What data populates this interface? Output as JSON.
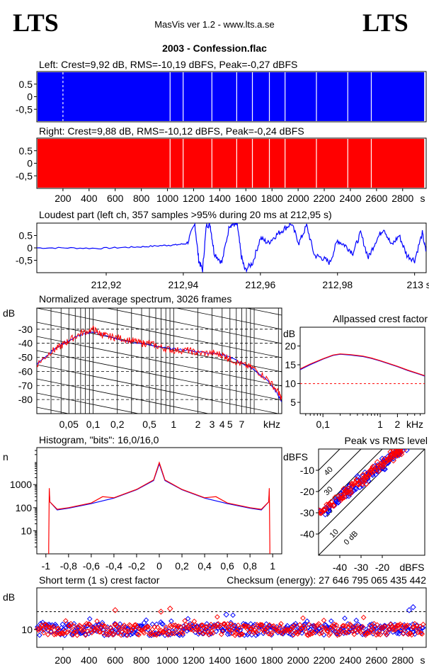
{
  "header": {
    "logo_left": "LTS",
    "logo_right": "LTS",
    "app_title": "MasVis ver 1.2 - www.lts.a.se",
    "file_title": "2003 - Confession.flac"
  },
  "colors": {
    "left": "#0000ff",
    "right": "#ff0000",
    "grid": "#000000",
    "reference_line": "#ff0000"
  },
  "chart_data": [
    {
      "id": "left_waveform",
      "type": "area",
      "title": "Left: Crest=9,92 dB, RMS=-10,19 dBFS, Peak=-0,27 dBFS",
      "ylim": [
        -1,
        1
      ],
      "y_ticks": [
        "0.5",
        "0",
        "-0,5"
      ],
      "y_tick_values": [
        0.5,
        0,
        -0.5
      ],
      "xlim": [
        0,
        2980
      ],
      "series": [
        {
          "name": "",
          "color": "#0000ff"
        }
      ],
      "envelope_x": [
        0,
        100,
        200,
        300,
        400,
        500,
        600,
        700,
        800,
        900,
        1000,
        1100,
        1200,
        1300,
        1400,
        1500,
        1600,
        1700,
        1800,
        1900,
        2000,
        2100,
        2200,
        2300,
        2400,
        2500,
        2600,
        2700,
        2800,
        2900,
        2960
      ],
      "envelope_y": [
        0.97,
        0.97,
        0.97,
        0.97,
        0.97,
        0.97,
        0.97,
        0.97,
        0.97,
        0.97,
        0.97,
        0.97,
        0.97,
        0.97,
        0.97,
        0.97,
        0.97,
        0.97,
        0.97,
        0.97,
        0.97,
        0.97,
        0.97,
        0.97,
        0.97,
        0.97,
        0.97,
        0.97,
        0.97,
        0.97,
        0.97
      ],
      "gaps_x": [
        200,
        1020,
        1120,
        1340,
        1530,
        1650,
        1780,
        1900,
        2140,
        2380,
        2560
      ]
    },
    {
      "id": "right_waveform",
      "type": "area",
      "title": "Right: Crest=9,88 dB, RMS=-10,12 dBFS, Peak=-0,24 dBFS",
      "ylim": [
        -1,
        1
      ],
      "y_ticks": [
        "0.5",
        "0",
        "-0,5"
      ],
      "y_tick_values": [
        0.5,
        0,
        -0.5
      ],
      "xlim": [
        0,
        2980
      ],
      "x_ticks": [
        "200",
        "400",
        "600",
        "800",
        "1000",
        "1200",
        "1400",
        "1600",
        "1800",
        "2000",
        "2200",
        "2400",
        "2600",
        "2800"
      ],
      "x_tick_values": [
        200,
        400,
        600,
        800,
        1000,
        1200,
        1400,
        1600,
        1800,
        2000,
        2200,
        2400,
        2600,
        2800
      ],
      "x_unit": "s",
      "series": [
        {
          "name": "",
          "color": "#ff0000"
        }
      ],
      "gaps_x": [
        1020,
        1120,
        1340,
        1530,
        1650,
        1780,
        1900,
        2140,
        2380,
        2560
      ]
    },
    {
      "id": "loudest_part",
      "type": "line",
      "title": "Loudest part (left  ch, 357 samples >95% during 20 ms at 212,95 s)",
      "ylim": [
        -1,
        1
      ],
      "y_ticks": [
        "0.5",
        "0",
        "-0,5"
      ],
      "y_tick_values": [
        0.5,
        0,
        -0.5
      ],
      "xlim": [
        212.902,
        213.003
      ],
      "x_ticks": [
        "212,92",
        "212,94",
        "212,96",
        "212,98",
        "213 s"
      ],
      "x_tick_values": [
        212.92,
        212.94,
        212.96,
        212.98,
        213.0
      ],
      "series": [
        {
          "name": "",
          "color": "#0000ff",
          "x": [
            212.902,
            212.91,
            212.918,
            212.925,
            212.93,
            212.935,
            212.938,
            212.941,
            212.943,
            212.944,
            212.945,
            212.946,
            212.947,
            212.948,
            212.95,
            212.952,
            212.953,
            212.954,
            212.955,
            212.956,
            212.958,
            212.96,
            212.962,
            212.964,
            212.966,
            212.968,
            212.97,
            212.972,
            212.974,
            212.976,
            212.978,
            212.98,
            212.982,
            212.984,
            212.986,
            212.988,
            212.99,
            212.992,
            212.994,
            212.996,
            212.998,
            213.0,
            213.002,
            213.003
          ],
          "y": [
            0.0,
            0.0,
            -0.02,
            0.02,
            0.05,
            0.1,
            0.12,
            0.18,
            0.95,
            -0.5,
            -0.9,
            0.95,
            0.9,
            -0.2,
            -0.6,
            0.92,
            0.95,
            0.95,
            -0.3,
            -0.9,
            -0.6,
            0.4,
            0.2,
            0.5,
            0.75,
            0.98,
            0.2,
            0.9,
            -0.3,
            -0.4,
            -0.6,
            0.3,
            0.1,
            -0.2,
            0.6,
            -0.4,
            0.3,
            0.8,
            0.1,
            0.5,
            -0.3,
            -0.5,
            0.6,
            -0.2
          ]
        }
      ]
    },
    {
      "id": "avg_spectrum",
      "type": "line",
      "title": "Normalized average spectrum, 3026 frames",
      "ylabel": "dB",
      "ylim": [
        -90,
        -15
      ],
      "y_ticks": [
        "-30",
        "-40",
        "-50",
        "-60",
        "-70",
        "-80"
      ],
      "y_tick_values": [
        -30,
        -40,
        -50,
        -60,
        -70,
        -80
      ],
      "x_scale": "log",
      "xlim": [
        0.02,
        22
      ],
      "x_ticks": [
        "0,05",
        "0,1",
        "0,2",
        "0,5",
        "1",
        "2",
        "3",
        "4",
        "5",
        "7"
      ],
      "x_tick_values": [
        0.05,
        0.1,
        0.2,
        0.5,
        1,
        2,
        3,
        4,
        5,
        7
      ],
      "x_unit": "kHz",
      "series": [
        {
          "name": "",
          "color": "#0000ff",
          "x": [
            0.02,
            0.03,
            0.04,
            0.05,
            0.07,
            0.1,
            0.15,
            0.2,
            0.3,
            0.5,
            0.7,
            1,
            1.5,
            2,
            3,
            4,
            5,
            7,
            10,
            15,
            20,
            22
          ],
          "y": [
            -55,
            -46,
            -41,
            -38,
            -34,
            -32,
            -35,
            -37,
            -39,
            -41,
            -43,
            -44,
            -45,
            -46,
            -47,
            -48,
            -50,
            -54,
            -59,
            -67,
            -77,
            -82
          ]
        },
        {
          "name": "",
          "color": "#ff0000",
          "x": [
            0.02,
            0.03,
            0.04,
            0.05,
            0.07,
            0.1,
            0.12,
            0.15,
            0.2,
            0.3,
            0.4,
            0.5,
            0.7,
            1,
            1.5,
            2,
            3,
            4,
            5,
            7,
            10,
            15,
            20,
            22
          ],
          "y": [
            -55,
            -46,
            -42,
            -38,
            -33,
            -30,
            -33,
            -35,
            -36,
            -38,
            -40,
            -40,
            -43,
            -45,
            -45,
            -47,
            -47,
            -48,
            -51,
            -55,
            -58,
            -66,
            -75,
            -80
          ]
        }
      ]
    },
    {
      "id": "allpassed_crest",
      "type": "line",
      "title": "Allpassed crest factor",
      "ylabel": "dB",
      "ylim": [
        2,
        25
      ],
      "y_ticks": [
        "20",
        "15",
        "10",
        "5"
      ],
      "y_tick_values": [
        20,
        15,
        10,
        5
      ],
      "x_scale": "log",
      "xlim": [
        0.04,
        6
      ],
      "x_ticks": [
        "0,1",
        "1",
        "2",
        "kHz"
      ],
      "x_tick_values": [
        0.1,
        1,
        2
      ],
      "reference_y": 10,
      "series": [
        {
          "name": "",
          "color": "#0000ff",
          "x": [
            0.04,
            0.06,
            0.1,
            0.15,
            0.2,
            0.3,
            0.5,
            0.7,
            1,
            2,
            3,
            5,
            6
          ],
          "y": [
            13.7,
            15,
            16.5,
            17.5,
            17.8,
            17.6,
            17.2,
            16.7,
            16.0,
            14.5,
            13.5,
            12.4,
            12.0
          ]
        },
        {
          "name": "",
          "color": "#ff0000",
          "x": [
            0.04,
            0.06,
            0.1,
            0.15,
            0.2,
            0.3,
            0.5,
            0.7,
            1,
            2,
            3,
            5,
            6
          ],
          "y": [
            13.9,
            15.2,
            16.6,
            17.6,
            17.9,
            17.7,
            17.3,
            16.8,
            16.1,
            14.6,
            13.6,
            12.5,
            12.1
          ]
        }
      ]
    },
    {
      "id": "histogram",
      "type": "line",
      "title": "Histogram, \"bits\": 16,0/16,0",
      "ylabel": "n",
      "y_scale": "log",
      "ylim": [
        1,
        40000
      ],
      "y_ticks": [
        "1000",
        "100",
        "10"
      ],
      "y_tick_values": [
        1000,
        100,
        10
      ],
      "xlim": [
        -1.08,
        1.08
      ],
      "x_ticks": [
        "-1",
        "-0,8",
        "-0,6",
        "-0,4",
        "-0,2",
        "0",
        "0,2",
        "0,4",
        "0,6",
        "0,8",
        "1"
      ],
      "x_tick_values": [
        -1,
        -0.8,
        -0.6,
        -0.4,
        -0.2,
        0,
        0.2,
        0.4,
        0.6,
        0.8,
        1
      ],
      "series": [
        {
          "name": "",
          "color": "#0000ff",
          "x": [
            -0.97,
            -0.965,
            -0.9,
            -0.8,
            -0.6,
            -0.4,
            -0.2,
            -0.05,
            0,
            0.05,
            0.2,
            0.4,
            0.6,
            0.8,
            0.9,
            0.965,
            0.97
          ],
          "y": [
            500,
            180,
            80,
            95,
            150,
            260,
            600,
            1500,
            8000,
            1500,
            600,
            260,
            150,
            95,
            80,
            180,
            500
          ]
        },
        {
          "name": "",
          "color": "#ff0000",
          "x": [
            -0.975,
            -0.97,
            -0.965,
            -0.9,
            -0.8,
            -0.6,
            -0.5,
            -0.4,
            -0.2,
            -0.05,
            0,
            0.05,
            0.2,
            0.4,
            0.5,
            0.6,
            0.8,
            0.9,
            0.965,
            0.97,
            0.975
          ],
          "y": [
            2,
            700,
            180,
            85,
            100,
            160,
            300,
            270,
            620,
            1600,
            9000,
            1600,
            620,
            270,
            300,
            160,
            100,
            85,
            180,
            700,
            2
          ]
        }
      ]
    },
    {
      "id": "peak_vs_rms",
      "type": "scatter",
      "title": "Peak vs RMS level",
      "ylabel": "dBFS",
      "xlabel": "dBFS",
      "xlim": [
        -50,
        0
      ],
      "ylim": [
        -50,
        0
      ],
      "y_ticks": [
        "-10",
        "-20",
        "-30",
        "-40"
      ],
      "y_tick_values": [
        -10,
        -20,
        -30,
        -40
      ],
      "x_ticks": [
        "-40",
        "-30",
        "-20",
        "dBFS"
      ],
      "x_tick_values": [
        -40,
        -30,
        -20
      ],
      "crest_lines": [
        "0 dB",
        "10",
        "20",
        "30",
        "40"
      ],
      "crest_line_values": [
        0,
        10,
        20,
        30,
        40
      ],
      "series": [
        {
          "name": "",
          "color": "#0000ff",
          "x": [
            -48,
            -46,
            -44,
            -42,
            -40,
            -38,
            -36,
            -34,
            -32,
            -30,
            -28,
            -26,
            -24,
            -22,
            -20,
            -18,
            -16,
            -14,
            -12,
            -10,
            -38,
            -35,
            -31,
            -27,
            -23,
            -19,
            -15,
            -13
          ],
          "y": [
            -30,
            -28,
            -27,
            -25,
            -24,
            -22,
            -21,
            -20,
            -18,
            -16,
            -14,
            -13,
            -11,
            -9,
            -8,
            -6,
            -4,
            -3,
            -1,
            0,
            -19,
            -17,
            -14,
            -11,
            -9,
            -6,
            -3,
            -2
          ]
        },
        {
          "name": "",
          "color": "#ff0000",
          "x": [
            -49,
            -47,
            -45,
            -43,
            -41,
            -39,
            -37,
            -35,
            -33,
            -31,
            -29,
            -27,
            -25,
            -23,
            -21,
            -19,
            -17,
            -15,
            -13,
            -11,
            -36,
            -32,
            -28,
            -24,
            -20,
            -16,
            -14,
            -12
          ],
          "y": [
            -29,
            -28,
            -26,
            -26,
            -23,
            -22,
            -20,
            -19,
            -17,
            -15,
            -15,
            -12,
            -10,
            -9,
            -7,
            -5,
            -4,
            -2,
            -1,
            0,
            -20,
            -16,
            -13,
            -10,
            -7,
            -4,
            -3,
            -1
          ]
        }
      ]
    },
    {
      "id": "short_term_crest",
      "type": "scatter",
      "title": "Short term (1 s) crest factor",
      "annotation": "Checksum (energy):  27 646 795 065 435 442",
      "ylabel": "dB",
      "ylim": [
        4,
        24
      ],
      "y_ticks": [
        "10"
      ],
      "y_tick_values": [
        10
      ],
      "reference_y": 16,
      "xlim": [
        0,
        2980
      ],
      "x_ticks": [
        "200",
        "400",
        "600",
        "800",
        "1000",
        "1200",
        "1400",
        "1600",
        "1800",
        "2000",
        "2200",
        "2400",
        "2600",
        "2800"
      ],
      "x_tick_values": [
        200,
        400,
        600,
        800,
        1000,
        1200,
        1400,
        1600,
        1800,
        2000,
        2200,
        2400,
        2600,
        2800
      ],
      "x_unit": "s",
      "typical_range": [
        8,
        12
      ],
      "outliers": [
        {
          "x": 600,
          "y": 16.5,
          "color": "#ff0000"
        },
        {
          "x": 950,
          "y": 16,
          "color": "#ff0000"
        },
        {
          "x": 1020,
          "y": 17,
          "color": "#ff0000"
        },
        {
          "x": 1450,
          "y": 15,
          "color": "#0000ff"
        },
        {
          "x": 2850,
          "y": 16.5,
          "color": "#0000ff"
        },
        {
          "x": 2880,
          "y": 17.5,
          "color": "#0000ff"
        }
      ]
    }
  ]
}
